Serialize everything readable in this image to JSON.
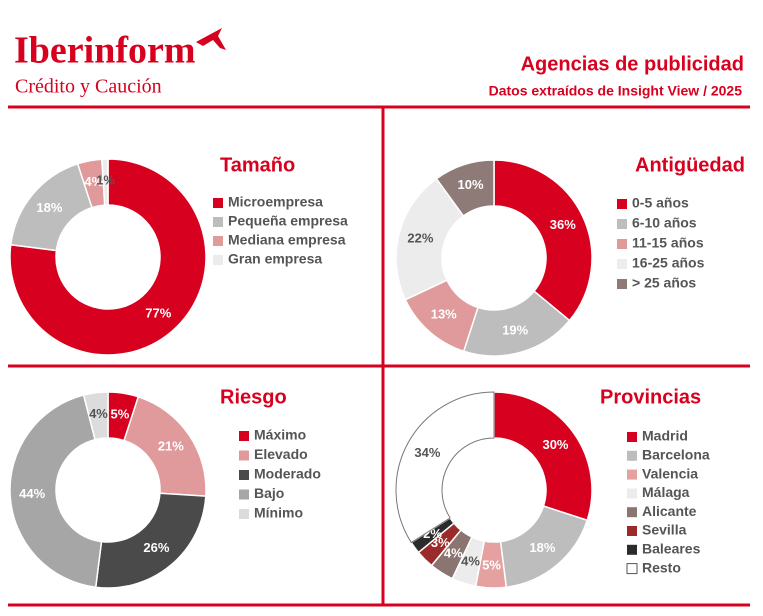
{
  "header": {
    "logo": "Iberinform",
    "logo_subtitle": "Crédito y Caución",
    "title": "Agencias de publicidad",
    "subtitle": "Datos extraídos de Insight View / 2025"
  },
  "chart_data": [
    {
      "type": "pie",
      "title": "Tamaño",
      "categories": [
        "Microempresa",
        "Pequeña empresa",
        "Mediana empresa",
        "Gran empresa"
      ],
      "values": [
        77,
        18,
        4,
        1
      ],
      "value_labels": [
        "77%",
        "18%",
        "4%",
        "1%"
      ],
      "colors": [
        "#d7001e",
        "#bdbdbd",
        "#e09a9b",
        "#ececec"
      ]
    },
    {
      "type": "pie",
      "title": "Antigüedad",
      "categories": [
        "0-5 años",
        "6-10 años",
        "11-15 años",
        "16-25 años",
        "> 25 años"
      ],
      "values": [
        36,
        19,
        13,
        22,
        10
      ],
      "value_labels": [
        "36%",
        "19%",
        "13%",
        "22%",
        "10%"
      ],
      "colors": [
        "#d7001e",
        "#bdbdbd",
        "#e09a9b",
        "#ececec",
        "#8e7b77"
      ]
    },
    {
      "type": "pie",
      "title": "Riesgo",
      "categories": [
        "Máximo",
        "Elevado",
        "Moderado",
        "Bajo",
        "Mínimo"
      ],
      "values": [
        5,
        21,
        26,
        44,
        4
      ],
      "value_labels": [
        "5%",
        "21%",
        "26%",
        "44%",
        "4%"
      ],
      "colors": [
        "#d7001e",
        "#e09a9b",
        "#4a4a4a",
        "#a6a6a6",
        "#dcdcdc"
      ]
    },
    {
      "type": "pie",
      "title": "Provincias",
      "categories": [
        "Madrid",
        "Barcelona",
        "Valencia",
        "Málaga",
        "Alicante",
        "Sevilla",
        "Baleares",
        "Resto"
      ],
      "values": [
        30,
        18,
        5,
        4,
        4,
        3,
        2,
        34
      ],
      "value_labels": [
        "30%",
        "18%",
        "5%",
        "4%",
        "4%",
        "3%",
        "2%",
        "34%"
      ],
      "colors": [
        "#d7001e",
        "#bdbdbd",
        "#e5a0a0",
        "#ececec",
        "#8a7570",
        "#9b2a2a",
        "#2b2b2b",
        "#ffffff"
      ]
    }
  ]
}
